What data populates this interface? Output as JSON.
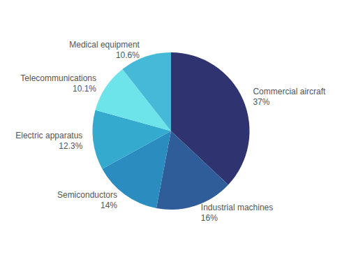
{
  "chart_data": {
    "type": "pie",
    "categories": [
      "Commercial aircraft",
      "Industrial machines",
      "Semiconductors",
      "Electric apparatus",
      "Telecommunications",
      "Medical equipment"
    ],
    "values": [
      37,
      16,
      14,
      12.3,
      10.1,
      10.6
    ],
    "value_labels": [
      "37%",
      "16%",
      "14%",
      "12.3%",
      "10.1%",
      "10.6%"
    ],
    "colors": [
      "#2f3470",
      "#2e5d99",
      "#2b8cc0",
      "#34aacf",
      "#6de3ea",
      "#45b9d7"
    ],
    "data_labels": true
  }
}
